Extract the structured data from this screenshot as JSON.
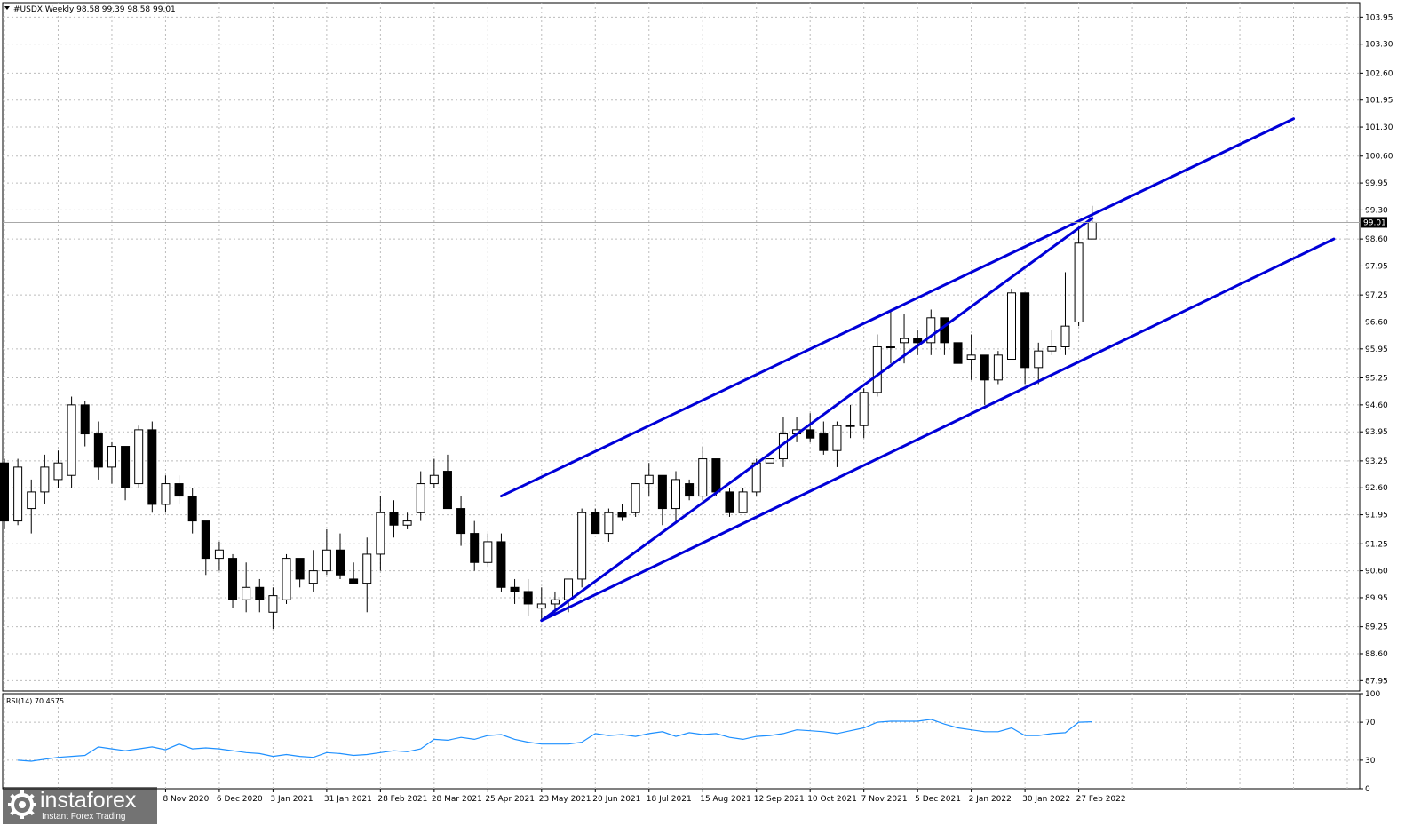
{
  "chart_data": {
    "type": "candlestick",
    "header": "#USDX,Weekly 98.58 99.39 98.58 99.01",
    "current_price_label": "99.01",
    "price_axis": {
      "ylim": [
        87.7,
        104.3
      ],
      "ticks": [
        "103.95",
        "103.30",
        "102.60",
        "101.95",
        "101.30",
        "100.60",
        "99.95",
        "99.30",
        "98.60",
        "97.95",
        "97.25",
        "96.60",
        "95.95",
        "95.25",
        "94.60",
        "93.95",
        "93.25",
        "92.60",
        "91.95",
        "91.25",
        "90.60",
        "89.95",
        "89.25",
        "88.60",
        "87.95"
      ]
    },
    "x_labels": [
      "8 Nov 2020",
      "6 Dec 2020",
      "3 Jan 2021",
      "31 Jan 2021",
      "28 Feb 2021",
      "28 Mar 2021",
      "25 Apr 2021",
      "23 May 2021",
      "20 Jun 2021",
      "18 Jul 2021",
      "15 Aug 2021",
      "12 Sep 2021",
      "10 Oct 2021",
      "7 Nov 2021",
      "5 Dec 2021",
      "2 Jan 2022",
      "30 Jan 2022",
      "27 Feb 2022"
    ],
    "x_label_index_start": 12,
    "x_label_index_step": 4,
    "candles": [
      [
        93.2,
        93.3,
        91.6,
        91.8
      ],
      [
        91.8,
        93.3,
        91.7,
        93.1
      ],
      [
        92.1,
        92.8,
        91.5,
        92.5
      ],
      [
        92.5,
        93.4,
        92.2,
        93.1
      ],
      [
        92.8,
        93.5,
        92.6,
        93.2
      ],
      [
        92.9,
        94.8,
        92.6,
        94.6
      ],
      [
        94.6,
        94.7,
        93.6,
        93.9
      ],
      [
        93.9,
        94.2,
        92.8,
        93.1
      ],
      [
        93.1,
        93.7,
        92.7,
        93.6
      ],
      [
        93.6,
        93.6,
        92.3,
        92.6
      ],
      [
        92.7,
        94.1,
        92.6,
        94.0
      ],
      [
        94.0,
        94.2,
        92.0,
        92.2
      ],
      [
        92.2,
        92.9,
        92.0,
        92.7
      ],
      [
        92.7,
        92.9,
        92.2,
        92.4
      ],
      [
        92.4,
        92.6,
        91.5,
        91.8
      ],
      [
        91.8,
        91.8,
        90.5,
        90.9
      ],
      [
        90.9,
        91.3,
        90.6,
        91.1
      ],
      [
        90.9,
        91.0,
        89.7,
        89.9
      ],
      [
        89.9,
        90.8,
        89.6,
        90.2
      ],
      [
        90.2,
        90.4,
        89.6,
        89.9
      ],
      [
        89.6,
        90.2,
        89.2,
        90.0
      ],
      [
        89.9,
        91.0,
        89.8,
        90.9
      ],
      [
        90.9,
        90.9,
        90.2,
        90.4
      ],
      [
        90.3,
        91.1,
        90.1,
        90.6
      ],
      [
        90.6,
        91.6,
        90.5,
        91.1
      ],
      [
        91.1,
        91.5,
        90.4,
        90.5
      ],
      [
        90.4,
        90.8,
        90.3,
        90.3
      ],
      [
        90.3,
        91.4,
        89.6,
        91.0
      ],
      [
        91.0,
        92.4,
        90.6,
        92.0
      ],
      [
        92.0,
        92.3,
        91.4,
        91.7
      ],
      [
        91.7,
        92.0,
        91.6,
        91.8
      ],
      [
        92.0,
        93.0,
        91.8,
        92.7
      ],
      [
        92.7,
        93.3,
        92.6,
        92.9
      ],
      [
        93.0,
        93.4,
        92.1,
        92.1
      ],
      [
        92.1,
        92.4,
        91.2,
        91.5
      ],
      [
        91.5,
        91.8,
        90.6,
        90.8
      ],
      [
        90.8,
        91.5,
        90.7,
        91.3
      ],
      [
        91.3,
        91.5,
        90.1,
        90.2
      ],
      [
        90.2,
        90.4,
        89.8,
        90.1
      ],
      [
        90.1,
        90.4,
        89.5,
        89.8
      ],
      [
        89.7,
        90.2,
        89.4,
        89.8
      ],
      [
        89.8,
        90.1,
        89.5,
        89.9
      ],
      [
        89.9,
        90.4,
        89.6,
        90.4
      ],
      [
        90.4,
        92.1,
        90.2,
        92.0
      ],
      [
        92.0,
        92.1,
        91.5,
        91.5
      ],
      [
        91.5,
        92.1,
        91.3,
        92.0
      ],
      [
        92.0,
        92.2,
        91.8,
        91.9
      ],
      [
        92.0,
        92.7,
        91.9,
        92.7
      ],
      [
        92.7,
        93.2,
        92.4,
        92.9
      ],
      [
        92.9,
        92.9,
        91.7,
        92.1
      ],
      [
        92.1,
        93.0,
        91.8,
        92.8
      ],
      [
        92.7,
        92.8,
        92.3,
        92.4
      ],
      [
        92.4,
        93.6,
        92.3,
        93.3
      ],
      [
        93.3,
        93.3,
        92.4,
        92.5
      ],
      [
        92.5,
        92.6,
        91.9,
        92.0
      ],
      [
        92.0,
        92.6,
        92.1,
        92.5
      ],
      [
        92.5,
        93.3,
        92.4,
        93.2
      ],
      [
        93.2,
        93.3,
        93.2,
        93.3
      ],
      [
        93.3,
        94.3,
        93.1,
        93.9
      ],
      [
        93.9,
        94.3,
        93.7,
        94.0
      ],
      [
        94.0,
        94.4,
        93.7,
        93.8
      ],
      [
        93.9,
        94.2,
        93.4,
        93.5
      ],
      [
        93.5,
        94.2,
        93.1,
        94.1
      ],
      [
        94.1,
        94.6,
        93.8,
        94.1
      ],
      [
        94.1,
        95.0,
        93.8,
        94.9
      ],
      [
        94.9,
        96.3,
        94.8,
        96.0
      ],
      [
        96.0,
        96.9,
        95.6,
        96.0
      ],
      [
        96.1,
        96.8,
        95.6,
        96.2
      ],
      [
        96.2,
        96.4,
        95.8,
        96.1
      ],
      [
        96.1,
        96.9,
        95.8,
        96.7
      ],
      [
        96.7,
        96.7,
        95.8,
        96.1
      ],
      [
        96.1,
        96.1,
        95.6,
        95.6
      ],
      [
        95.7,
        96.3,
        95.2,
        95.8
      ],
      [
        95.8,
        95.8,
        94.6,
        95.2
      ],
      [
        95.2,
        95.9,
        95.1,
        95.8
      ],
      [
        95.7,
        97.4,
        95.7,
        97.3
      ],
      [
        97.3,
        97.3,
        95.1,
        95.5
      ],
      [
        95.5,
        96.1,
        95.1,
        95.9
      ],
      [
        95.9,
        96.4,
        95.8,
        96.0
      ],
      [
        96.0,
        97.8,
        95.8,
        96.5
      ],
      [
        96.6,
        98.9,
        96.5,
        98.5
      ],
      [
        98.6,
        99.4,
        98.6,
        99.0
      ]
    ],
    "channel_lines": [
      {
        "from": {
          "index": 40,
          "price": 89.4
        },
        "to": {
          "index": 81,
          "price": 99.1
        }
      },
      {
        "from": {
          "index": 37,
          "price": 92.4
        },
        "to": {
          "index": 81,
          "price": 99.1
        },
        "extend_to": {
          "index": 96,
          "price": 101.5
        }
      },
      {
        "from": {
          "index": 40,
          "price": 89.4
        },
        "to": {
          "index": 99,
          "price": 98.6
        }
      }
    ],
    "rsi": {
      "label": "RSI(14) 70.4575",
      "ylim": [
        0,
        100
      ],
      "ticks": [
        "100",
        "70",
        "30",
        "0"
      ],
      "values": [
        30,
        29,
        31,
        33,
        34,
        35,
        44,
        42,
        40,
        42,
        44,
        41,
        47,
        42,
        43,
        42,
        40,
        38,
        37,
        34,
        36,
        34,
        33,
        38,
        37,
        35,
        36,
        38,
        40,
        39,
        42,
        52,
        51,
        54,
        52,
        56,
        57,
        52,
        49,
        47,
        47,
        47,
        49,
        58,
        56,
        57,
        55,
        58,
        60,
        55,
        59,
        57,
        58,
        54,
        52,
        55,
        56,
        58,
        62,
        61,
        60,
        58,
        61,
        64,
        70,
        71,
        71,
        71,
        73,
        68,
        64,
        62,
        60,
        60,
        64,
        56,
        56,
        58,
        59,
        70,
        70.4575
      ]
    },
    "rsi_index_start": 1
  },
  "watermark": {
    "name": "instaforex",
    "tagline": "Instant Forex Trading"
  },
  "colors": {
    "channel": "#0000d8",
    "rsi": "#1e90ff",
    "grid": "#bcbcbc"
  }
}
